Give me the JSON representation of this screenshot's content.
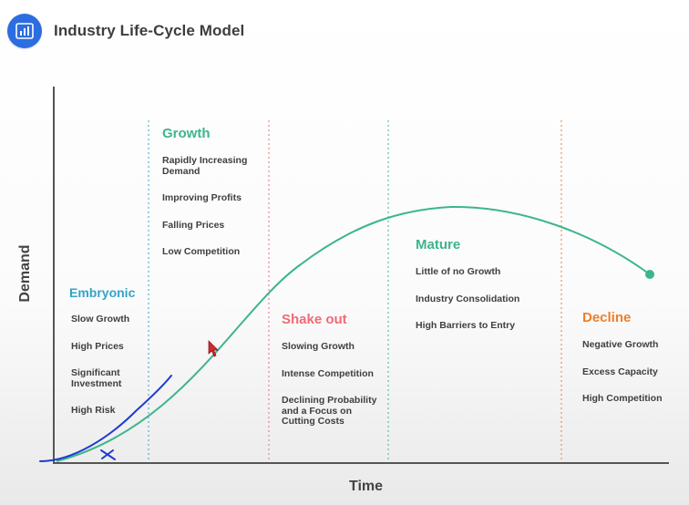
{
  "header": {
    "title": "Industry Life-Cycle Model",
    "logo_icon": "bar-chart-icon",
    "logo_color": "#2c6de0"
  },
  "axes": {
    "x_label": "Time",
    "y_label": "Demand"
  },
  "colors": {
    "curve": "#3db58c",
    "annotation": "#1f3ccf",
    "cursor": "#d9262f"
  },
  "stages": [
    {
      "name": "Embryonic",
      "color": "#33a4c6",
      "items": [
        "Slow Growth",
        "High Prices",
        "Significant Investment",
        "High Risk"
      ]
    },
    {
      "name": "Growth",
      "color": "#3db58c",
      "items": [
        "Rapidly Increasing Demand",
        "Improving Profits",
        "Falling Prices",
        "Low Competition"
      ]
    },
    {
      "name": "Shake out",
      "color": "#f06a76",
      "items": [
        "Slowing Growth",
        "Intense Competition",
        "Declining Probability and a Focus on Cutting Costs"
      ]
    },
    {
      "name": "Mature",
      "color": "#3db58c",
      "items": [
        "Little of no Growth",
        "Industry Consolidation",
        "High Barriers to Entry"
      ]
    },
    {
      "name": "Decline",
      "color": "#ef7e2a",
      "items": [
        "Negative Growth",
        "Excess Capacity",
        "High Competition"
      ]
    }
  ]
}
